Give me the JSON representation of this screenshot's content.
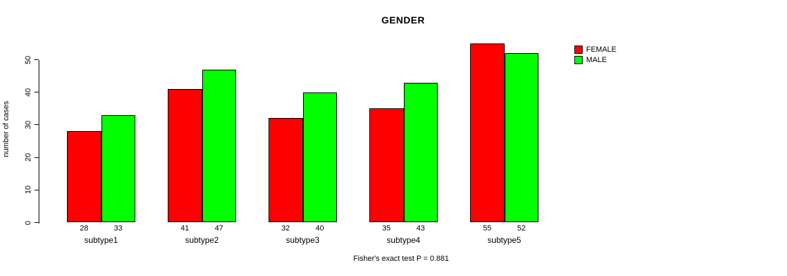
{
  "chart_data": {
    "type": "bar",
    "title": "GENDER",
    "ylabel": "number of cases",
    "xlabel": "",
    "categories": [
      "subtype1",
      "subtype2",
      "subtype3",
      "subtype4",
      "subtype5"
    ],
    "series": [
      {
        "name": "FEMALE",
        "color": "#FF0000",
        "values": [
          28,
          41,
          32,
          35,
          55
        ]
      },
      {
        "name": "MALE",
        "color": "#00FF00",
        "values": [
          33,
          47,
          40,
          43,
          52
        ]
      }
    ],
    "y_ticks": [
      0,
      10,
      20,
      30,
      40,
      50
    ],
    "ylim": [
      0,
      55
    ],
    "grid": false,
    "legend_position": "top-right",
    "bar_value_labels": true,
    "annotation": "Fisher's exact test P = 0.881"
  },
  "colors": {
    "background": "#FFFFFF",
    "axis": "#000000",
    "text": "#000000",
    "female": "#FF0000",
    "male": "#00FF00"
  }
}
